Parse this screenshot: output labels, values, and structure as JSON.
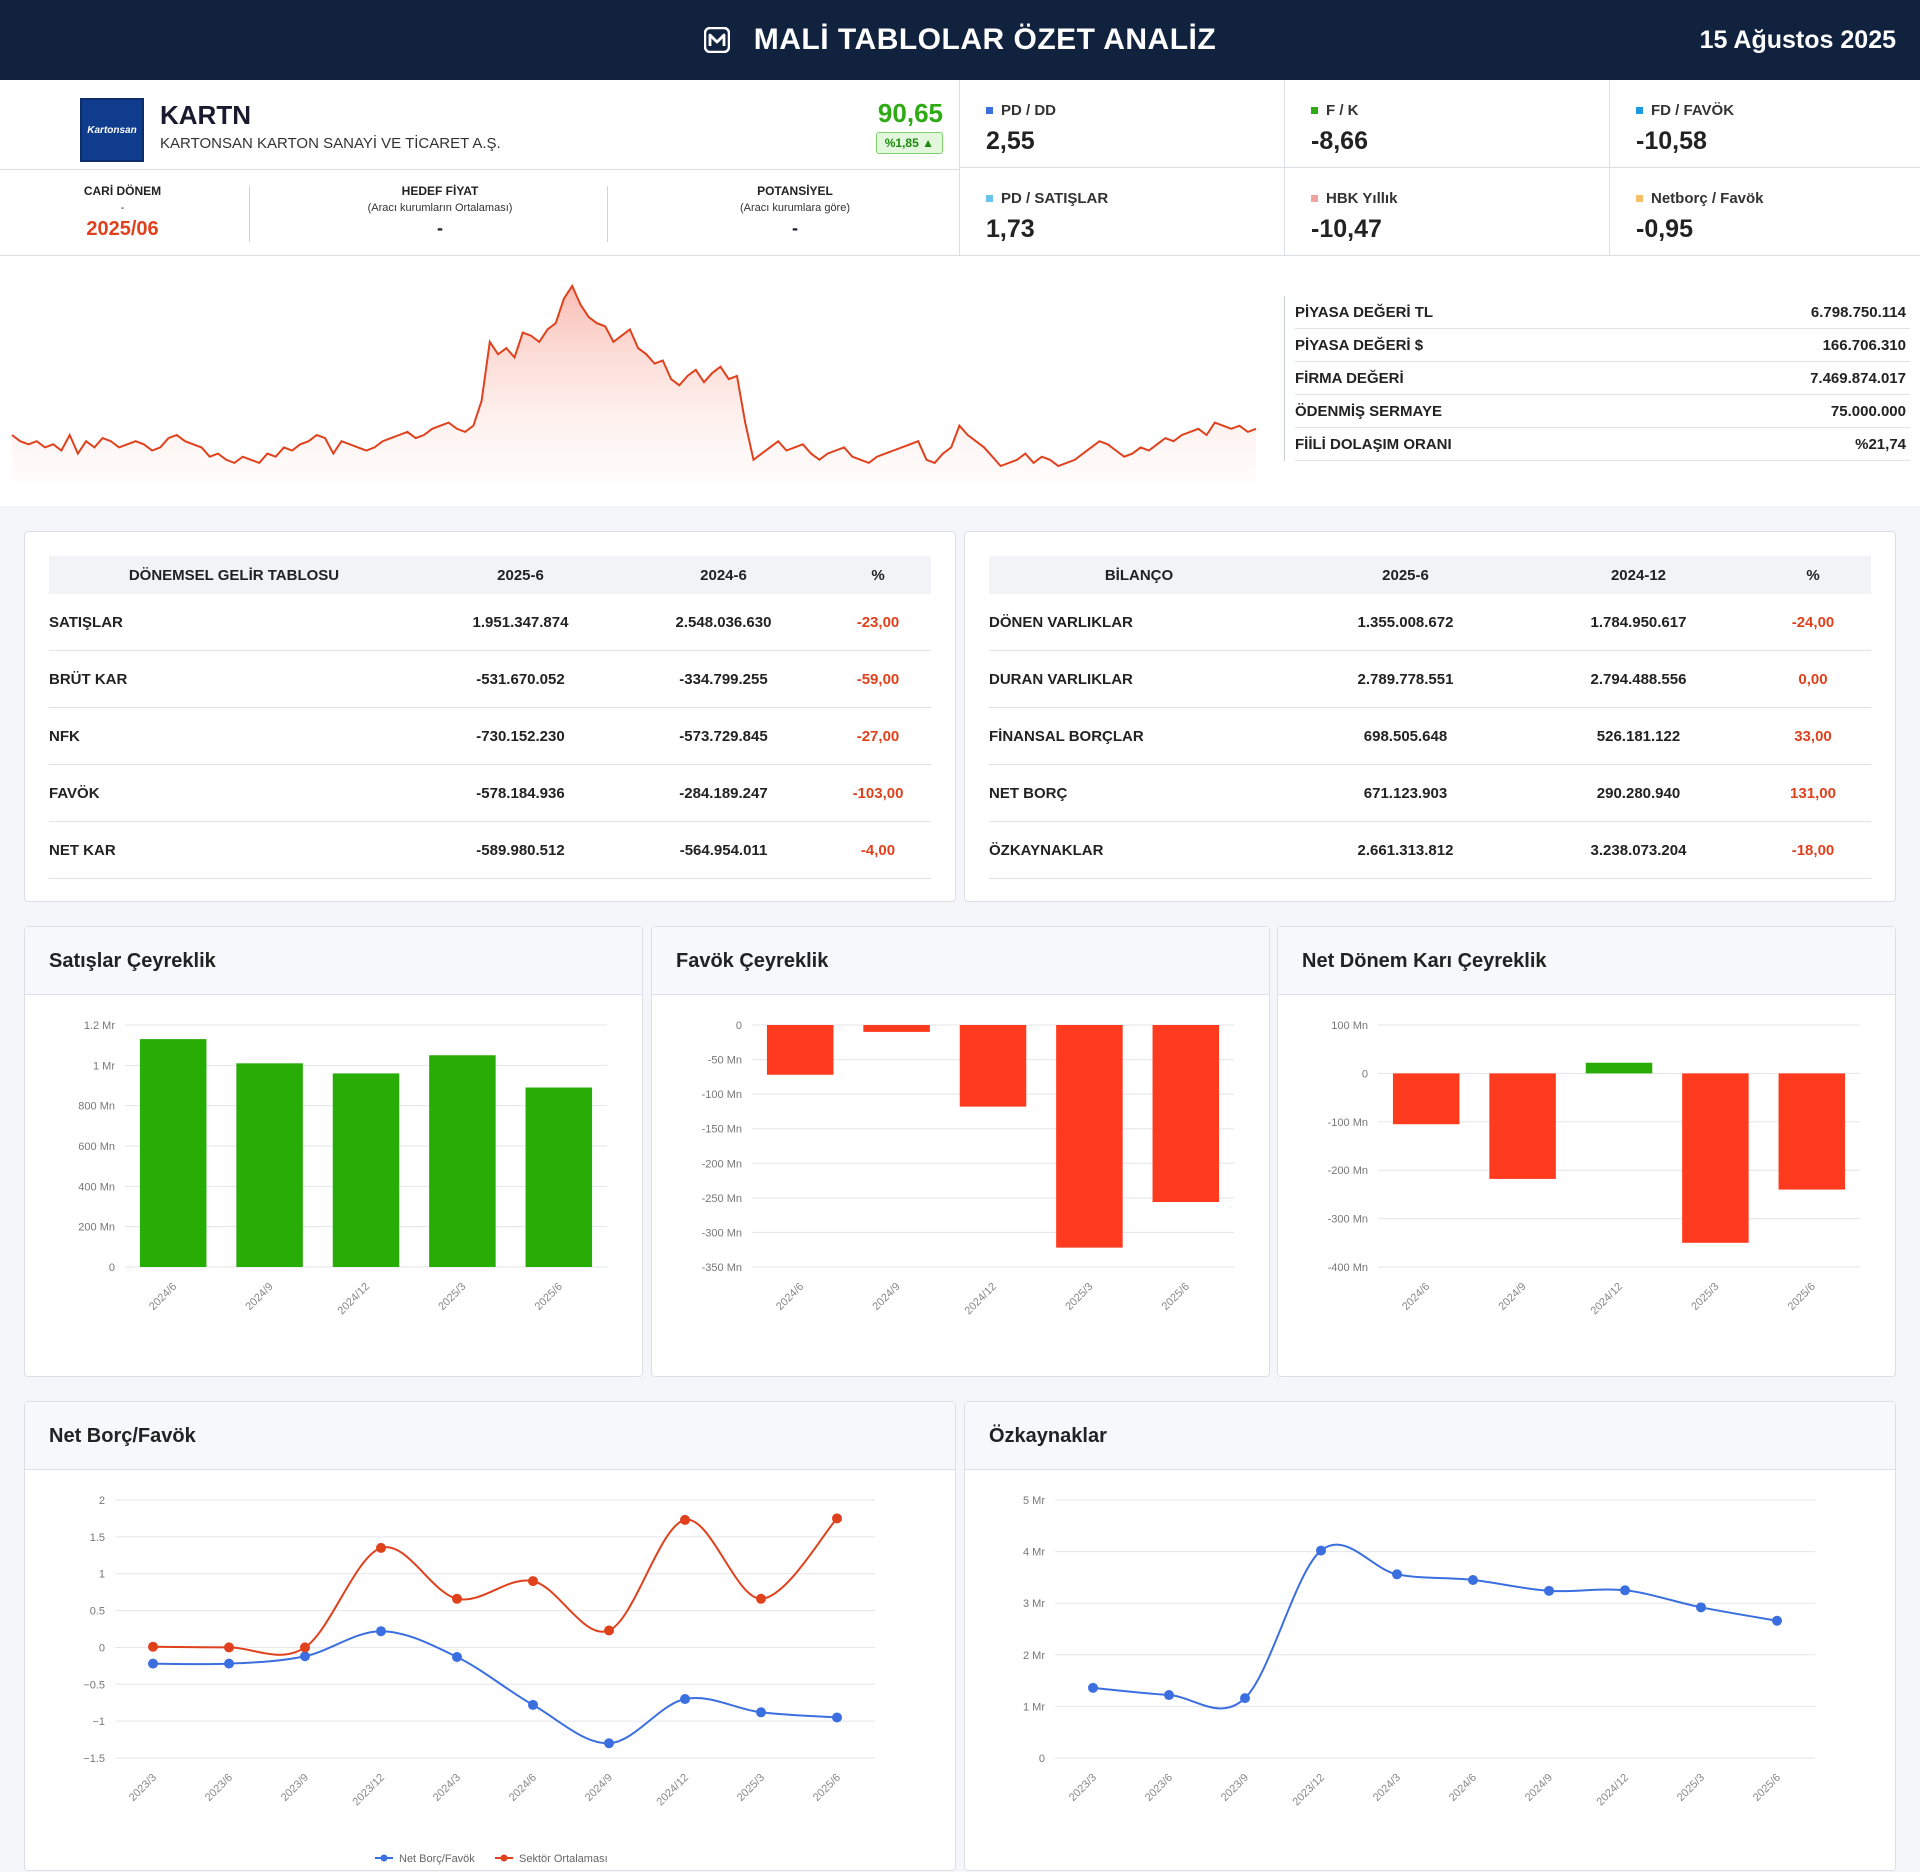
{
  "header": {
    "title": "MALİ TABLOLAR ÖZET ANALİZ",
    "date": "15 Ağustos 2025"
  },
  "company": {
    "logo_text": "Kartonsan",
    "ticker": "KARTN",
    "name": "KARTONSAN KARTON SANAYİ VE TİCARET A.Ş.",
    "price": "90,65",
    "change": "%1,85 ▲"
  },
  "period": {
    "current_label": "CARİ DÖNEM",
    "current_sub": "-",
    "current_value": "2025/06",
    "target_label": "HEDEF FİYAT",
    "target_sub": "(Aracı kurumların Ortalaması)",
    "target_value": "-",
    "potential_label": "POTANSİYEL",
    "potential_sub": "(Aracı kurumlara göre)",
    "potential_value": "-"
  },
  "metrics": [
    {
      "label": "PD / DD",
      "value": "2,55",
      "color": "#3b6fe0"
    },
    {
      "label": "F / K",
      "value": "-8,66",
      "color": "#2eaa14"
    },
    {
      "label": "FD / FAVÖK",
      "value": "-10,58",
      "color": "#1e9be0"
    },
    {
      "label": "PD / SATIŞLAR",
      "value": "1,73",
      "color": "#6cc3ea"
    },
    {
      "label": "HBK Yıllık",
      "value": "-10,47",
      "color": "#f2a3a0"
    },
    {
      "label": "Netborç / Favök",
      "value": "-0,95",
      "color": "#f5c06c"
    }
  ],
  "price_chart": {
    "series": [
      22,
      20,
      19,
      20,
      18,
      19,
      17,
      22,
      16,
      20,
      18,
      21,
      20,
      18,
      19,
      20,
      19,
      17,
      18,
      21,
      22,
      20,
      19,
      18,
      15,
      16,
      14,
      13,
      15,
      14,
      13,
      16,
      15,
      18,
      17,
      19,
      20,
      22,
      21,
      16,
      20,
      19,
      18,
      17,
      18,
      20,
      21,
      22,
      23,
      21,
      22,
      24,
      25,
      26,
      24,
      23,
      25,
      33,
      52,
      48,
      50,
      47,
      55,
      54,
      52,
      56,
      58,
      66,
      70,
      64,
      60,
      58,
      57,
      52,
      54,
      56,
      50,
      48,
      45,
      46,
      40,
      38,
      41,
      43,
      39,
      42,
      44,
      40,
      41,
      26,
      14,
      16,
      18,
      20,
      17,
      18,
      19,
      16,
      14,
      16,
      17,
      18,
      15,
      14,
      13,
      15,
      16,
      17,
      18,
      19,
      20,
      14,
      13,
      16,
      18,
      25,
      22,
      20,
      18,
      15,
      12,
      13,
      14,
      16,
      13,
      15,
      14,
      12,
      13,
      14,
      16,
      18,
      20,
      19,
      17,
      15,
      16,
      18,
      17,
      19,
      21,
      20,
      22,
      23,
      24,
      22,
      26,
      25,
      24,
      25,
      23,
      24
    ]
  },
  "market": [
    {
      "label": "PİYASA DEĞERİ TL",
      "value": "6.798.750.114"
    },
    {
      "label": "PİYASA DEĞERİ $",
      "value": "166.706.310"
    },
    {
      "label": "FİRMA DEĞERİ",
      "value": "7.469.874.017"
    },
    {
      "label": "ÖDENMİŞ SERMAYE",
      "value": "75.000.000"
    },
    {
      "label": "FİİLİ DOLAŞIM ORANI",
      "value": "%21,74"
    }
  ],
  "income": {
    "headers": [
      "DÖNEMSEL GELİR TABLOSU",
      "2025-6",
      "2024-6",
      "%"
    ],
    "rows": [
      [
        "SATIŞLAR",
        "1.951.347.874",
        "2.548.036.630",
        "-23,00"
      ],
      [
        "BRÜT KAR",
        "-531.670.052",
        "-334.799.255",
        "-59,00"
      ],
      [
        "NFK",
        "-730.152.230",
        "-573.729.845",
        "-27,00"
      ],
      [
        "FAVÖK",
        "-578.184.936",
        "-284.189.247",
        "-103,00"
      ],
      [
        "NET KAR",
        "-589.980.512",
        "-564.954.011",
        "-4,00"
      ]
    ]
  },
  "balance": {
    "headers": [
      "BİLANÇO",
      "2025-6",
      "2024-12",
      "%"
    ],
    "rows": [
      [
        "DÖNEN VARLIKLAR",
        "1.355.008.672",
        "1.784.950.617",
        "-24,00"
      ],
      [
        "DURAN VARLIKLAR",
        "2.789.778.551",
        "2.794.488.556",
        "0,00"
      ],
      [
        "FİNANSAL BORÇLAR",
        "698.505.648",
        "526.181.122",
        "33,00"
      ],
      [
        "NET BORÇ",
        "671.123.903",
        "290.280.940",
        "131,00"
      ],
      [
        "ÖZKAYNAKLAR",
        "2.661.313.812",
        "3.238.073.204",
        "-18,00"
      ]
    ]
  },
  "chart_data": [
    {
      "id": "sales",
      "type": "bar",
      "title": "Satışlar Çeyreklik",
      "categories": [
        "2024/6",
        "2024/9",
        "2024/12",
        "2025/3",
        "2025/6"
      ],
      "values": [
        1130,
        1010,
        960,
        1050,
        890
      ],
      "unit": "Mn",
      "ylim": [
        0,
        1200
      ],
      "ticks": [
        {
          "v": 0,
          "t": "0"
        },
        {
          "v": 200,
          "t": "200 Mn"
        },
        {
          "v": 400,
          "t": "400 Mn"
        },
        {
          "v": 600,
          "t": "600 Mn"
        },
        {
          "v": 800,
          "t": "800 Mn"
        },
        {
          "v": 1000,
          "t": "1 Mr"
        },
        {
          "v": 1200,
          "t": "1.2 Mr"
        }
      ]
    },
    {
      "id": "favok",
      "type": "bar",
      "title": "Favök Çeyreklik",
      "categories": [
        "2024/6",
        "2024/9",
        "2024/12",
        "2025/3",
        "2025/6"
      ],
      "values": [
        -72,
        -10,
        -118,
        -322,
        -256
      ],
      "unit": "Mn",
      "ylim": [
        -350,
        0
      ],
      "ticks": [
        {
          "v": 0,
          "t": "0"
        },
        {
          "v": -50,
          "t": "-50 Mn"
        },
        {
          "v": -100,
          "t": "-100 Mn"
        },
        {
          "v": -150,
          "t": "-150 Mn"
        },
        {
          "v": -200,
          "t": "-200 Mn"
        },
        {
          "v": -250,
          "t": "-250 Mn"
        },
        {
          "v": -300,
          "t": "-300 Mn"
        },
        {
          "v": -350,
          "t": "-350 Mn"
        }
      ]
    },
    {
      "id": "netkar",
      "type": "bar",
      "title": "Net Dönem Karı Çeyreklik",
      "categories": [
        "2024/6",
        "2024/9",
        "2024/12",
        "2025/3",
        "2025/6"
      ],
      "values": [
        -105,
        -218,
        22,
        -350,
        -240
      ],
      "unit": "Mn",
      "ylim": [
        -400,
        100
      ],
      "ticks": [
        {
          "v": 100,
          "t": "100 Mn"
        },
        {
          "v": 0,
          "t": "0"
        },
        {
          "v": -100,
          "t": "-100 Mn"
        },
        {
          "v": -200,
          "t": "-200 Mn"
        },
        {
          "v": -300,
          "t": "-300 Mn"
        },
        {
          "v": -400,
          "t": "-400 Mn"
        }
      ]
    },
    {
      "id": "netborc",
      "type": "line",
      "title": "Net Borç/Favök",
      "categories": [
        "2023/3",
        "2023/6",
        "2023/9",
        "2023/12",
        "2024/3",
        "2024/6",
        "2024/9",
        "2024/12",
        "2025/3",
        "2025/6"
      ],
      "ylim": [
        -1.5,
        2
      ],
      "ticks": [
        {
          "v": 2,
          "t": "2"
        },
        {
          "v": 1.5,
          "t": "1.5"
        },
        {
          "v": 1,
          "t": "1"
        },
        {
          "v": 0.5,
          "t": "0.5"
        },
        {
          "v": 0,
          "t": "0"
        },
        {
          "v": -0.5,
          "t": "−0.5"
        },
        {
          "v": -1,
          "t": "−1"
        },
        {
          "v": -1.5,
          "t": "−1.5"
        }
      ],
      "series": [
        {
          "name": "Net Borç/Favök",
          "color": "#3b6fe0",
          "values": [
            -0.22,
            -0.22,
            -0.12,
            0.22,
            -0.13,
            -0.78,
            -1.3,
            -0.7,
            -0.88,
            -0.95
          ]
        },
        {
          "name": "Sektör Ortalaması",
          "color": "#e0411d",
          "values": [
            0.01,
            0,
            0,
            1.35,
            0.66,
            0.9,
            0.23,
            1.73,
            0.66,
            1.75
          ]
        }
      ]
    },
    {
      "id": "ozkaynak",
      "type": "line",
      "title": "Özkaynaklar",
      "categories": [
        "2023/3",
        "2023/6",
        "2023/9",
        "2023/12",
        "2024/3",
        "2024/6",
        "2024/9",
        "2024/12",
        "2025/3",
        "2025/6"
      ],
      "ylim": [
        0,
        5000
      ],
      "ticks": [
        {
          "v": 0,
          "t": "0"
        },
        {
          "v": 1000,
          "t": "1 Mr"
        },
        {
          "v": 2000,
          "t": "2 Mr"
        },
        {
          "v": 3000,
          "t": "3 Mr"
        },
        {
          "v": 4000,
          "t": "4 Mr"
        },
        {
          "v": 5000,
          "t": "5 Mr"
        }
      ],
      "series": [
        {
          "color": "#3b6fe0",
          "values": [
            1360,
            1220,
            1160,
            4020,
            3560,
            3450,
            3240,
            3250,
            2920,
            2660
          ]
        }
      ]
    }
  ]
}
